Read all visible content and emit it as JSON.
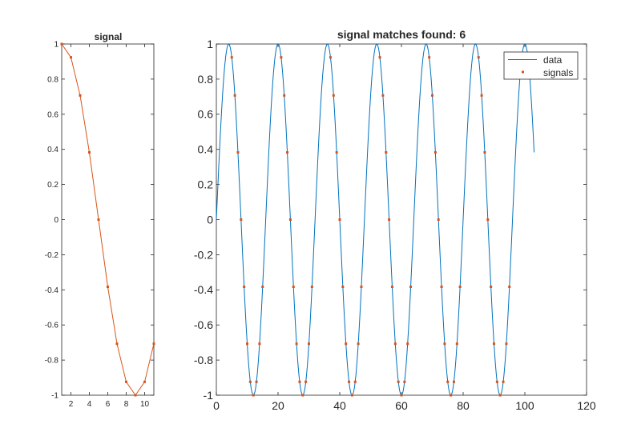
{
  "chart_data": [
    {
      "type": "line",
      "title": "signal",
      "xlabel": "",
      "ylabel": "",
      "xlim": [
        1,
        11
      ],
      "ylim": [
        -1,
        1
      ],
      "xticks": [
        2,
        4,
        6,
        8,
        10
      ],
      "yticks": [
        -1,
        -0.8,
        -0.6,
        -0.4,
        -0.2,
        0,
        0.2,
        0.4,
        0.6,
        0.8,
        1
      ],
      "grid": false,
      "series": [
        {
          "color": "#D95319",
          "marker": "point",
          "x": [
            1,
            2,
            3,
            4,
            5,
            6,
            7,
            8,
            9,
            10,
            11
          ],
          "y": [
            1,
            0.924,
            0.707,
            0.383,
            0,
            -0.383,
            -0.707,
            -0.924,
            -1,
            -0.924,
            -0.707
          ]
        }
      ]
    },
    {
      "type": "line",
      "title": "signal matches found: 6",
      "xlabel": "",
      "ylabel": "",
      "xlim": [
        0,
        120
      ],
      "ylim": [
        -1,
        1
      ],
      "xticks": [
        0,
        20,
        40,
        60,
        80,
        100,
        120
      ],
      "yticks": [
        -1,
        -0.8,
        -0.6,
        -0.4,
        -0.2,
        0,
        0.2,
        0.4,
        0.6,
        0.8,
        1
      ],
      "grid": false,
      "legend_position": "top-right",
      "data_series": {
        "name": "data",
        "color": "#0072BD",
        "period": 16,
        "amplitude": 1,
        "x_start": 0,
        "x_end": 103
      },
      "signals_series": {
        "name": "signals",
        "color": "#D95319",
        "marker": "point",
        "match_starts": [
          5,
          21,
          37,
          53,
          69,
          85
        ],
        "match_length": 11,
        "period": 16
      }
    }
  ]
}
